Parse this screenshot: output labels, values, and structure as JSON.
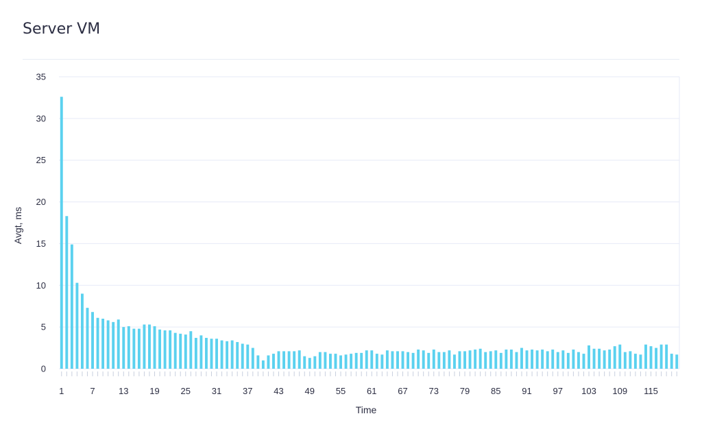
{
  "card": {
    "title": "Server VM"
  },
  "chart_data": {
    "type": "bar",
    "title": "Server VM",
    "xlabel": "Time",
    "ylabel": "Avgt, ms",
    "ylim": [
      0,
      35
    ],
    "yticks": [
      0,
      5,
      10,
      15,
      20,
      25,
      30,
      35
    ],
    "xtick_labels": [
      "1",
      "7",
      "13",
      "19",
      "25",
      "31",
      "37",
      "43",
      "49",
      "55",
      "61",
      "67",
      "73",
      "79",
      "85",
      "91",
      "97",
      "103",
      "109",
      "115"
    ],
    "grid": true,
    "bar_color": "#5bd1ef",
    "series": [
      {
        "values": [
          32.6,
          18.3,
          14.9,
          10.3,
          9.0,
          7.3,
          6.8,
          6.1,
          6.0,
          5.8,
          5.6,
          5.9,
          5.0,
          5.1,
          4.8,
          4.8,
          5.3,
          5.3,
          5.1,
          4.7,
          4.6,
          4.6,
          4.3,
          4.2,
          4.1,
          4.5,
          3.7,
          4.0,
          3.7,
          3.6,
          3.6,
          3.4,
          3.3,
          3.4,
          3.2,
          3.0,
          2.9,
          2.5,
          1.6,
          1.0,
          1.6,
          1.8,
          2.1,
          2.1,
          2.1,
          2.1,
          2.2,
          1.5,
          1.3,
          1.5,
          2.0,
          2.0,
          1.8,
          1.8,
          1.6,
          1.7,
          1.8,
          1.9,
          1.9,
          2.2,
          2.2,
          1.8,
          1.7,
          2.2,
          2.1,
          2.1,
          2.1,
          2.0,
          1.9,
          2.3,
          2.2,
          1.9,
          2.3,
          2.0,
          2.0,
          2.2,
          1.7,
          2.1,
          2.1,
          2.2,
          2.3,
          2.4,
          2.0,
          2.1,
          2.2,
          1.9,
          2.3,
          2.3,
          2.0,
          2.5,
          2.2,
          2.3,
          2.2,
          2.3,
          2.1,
          2.3,
          2.0,
          2.2,
          1.9,
          2.3,
          2.0,
          1.8,
          2.8,
          2.4,
          2.4,
          2.2,
          2.3,
          2.7,
          2.9,
          2.0,
          2.1,
          1.8,
          1.7,
          2.9,
          2.7,
          2.5,
          2.9,
          2.9,
          1.8,
          1.7
        ]
      }
    ]
  }
}
